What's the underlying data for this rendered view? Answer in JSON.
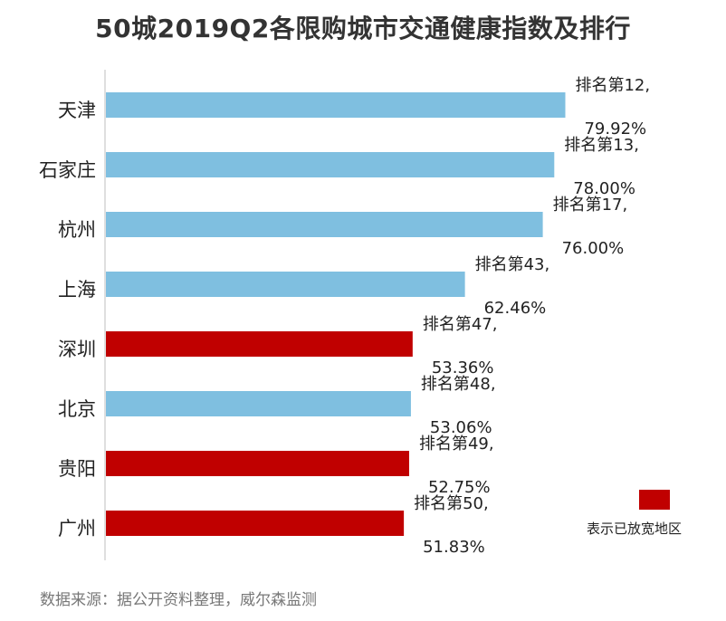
{
  "chart_data": {
    "type": "bar",
    "orientation": "horizontal",
    "title": "50城2019Q2各限购城市交通健康指数及排行",
    "categories": [
      "天津",
      "石家庄",
      "杭州",
      "上海",
      "深圳",
      "北京",
      "贵阳",
      "广州"
    ],
    "values": [
      79.92,
      78.0,
      76.0,
      62.46,
      53.36,
      53.06,
      52.75,
      51.83
    ],
    "value_labels": [
      "79.92%",
      "78.00%",
      "76.00%",
      "62.46%",
      "53.36%",
      "53.06%",
      "52.75%",
      "51.83%"
    ],
    "rank_labels": [
      "排名第12,",
      "排名第13,",
      "排名第17,",
      "排名第43,",
      "排名第47,",
      "排名第48,",
      "排名第49,",
      "排名第50,"
    ],
    "highlighted": [
      false,
      false,
      false,
      false,
      true,
      false,
      true,
      true
    ],
    "colors": {
      "normal": "#7fbfe0",
      "highlight": "#c00000",
      "axis": "#bfbfbf"
    },
    "legend": {
      "label": "表示已放宽地区",
      "color": "#c00000",
      "placement": "right"
    },
    "xlim": [
      0,
      100
    ],
    "grid": false,
    "xlabel": "",
    "ylabel": ""
  },
  "source_note": "数据来源：据公开资料整理，威尔森监测"
}
